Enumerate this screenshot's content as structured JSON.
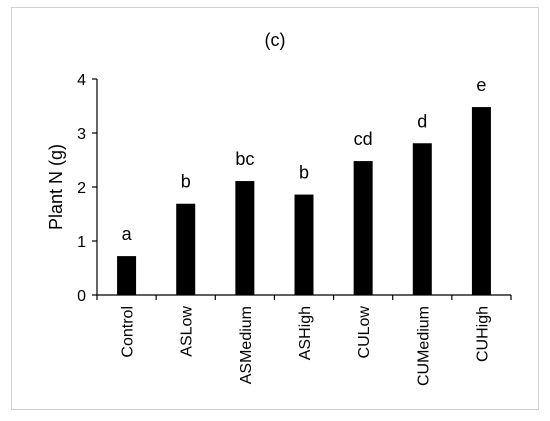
{
  "chart_data": {
    "type": "bar",
    "title": "(c)",
    "xlabel": "",
    "ylabel": "Plant N  (g)",
    "ylim": [
      0,
      4
    ],
    "yticks": [
      "0",
      "1",
      "2",
      "3",
      "4"
    ],
    "grid": false,
    "categories": [
      "Control",
      "ASLow",
      "ASMedium",
      "ASHigh",
      "CULow",
      "CUMedium",
      "CUHigh"
    ],
    "values": [
      0.72,
      1.69,
      2.11,
      1.86,
      2.48,
      2.81,
      3.48
    ],
    "annotations": [
      "a",
      "b",
      "bc",
      "b",
      "cd",
      "d",
      "e"
    ],
    "colors": {
      "bar": "#000000",
      "axis": "#000000",
      "frame_border": "#d0d0d0"
    }
  }
}
